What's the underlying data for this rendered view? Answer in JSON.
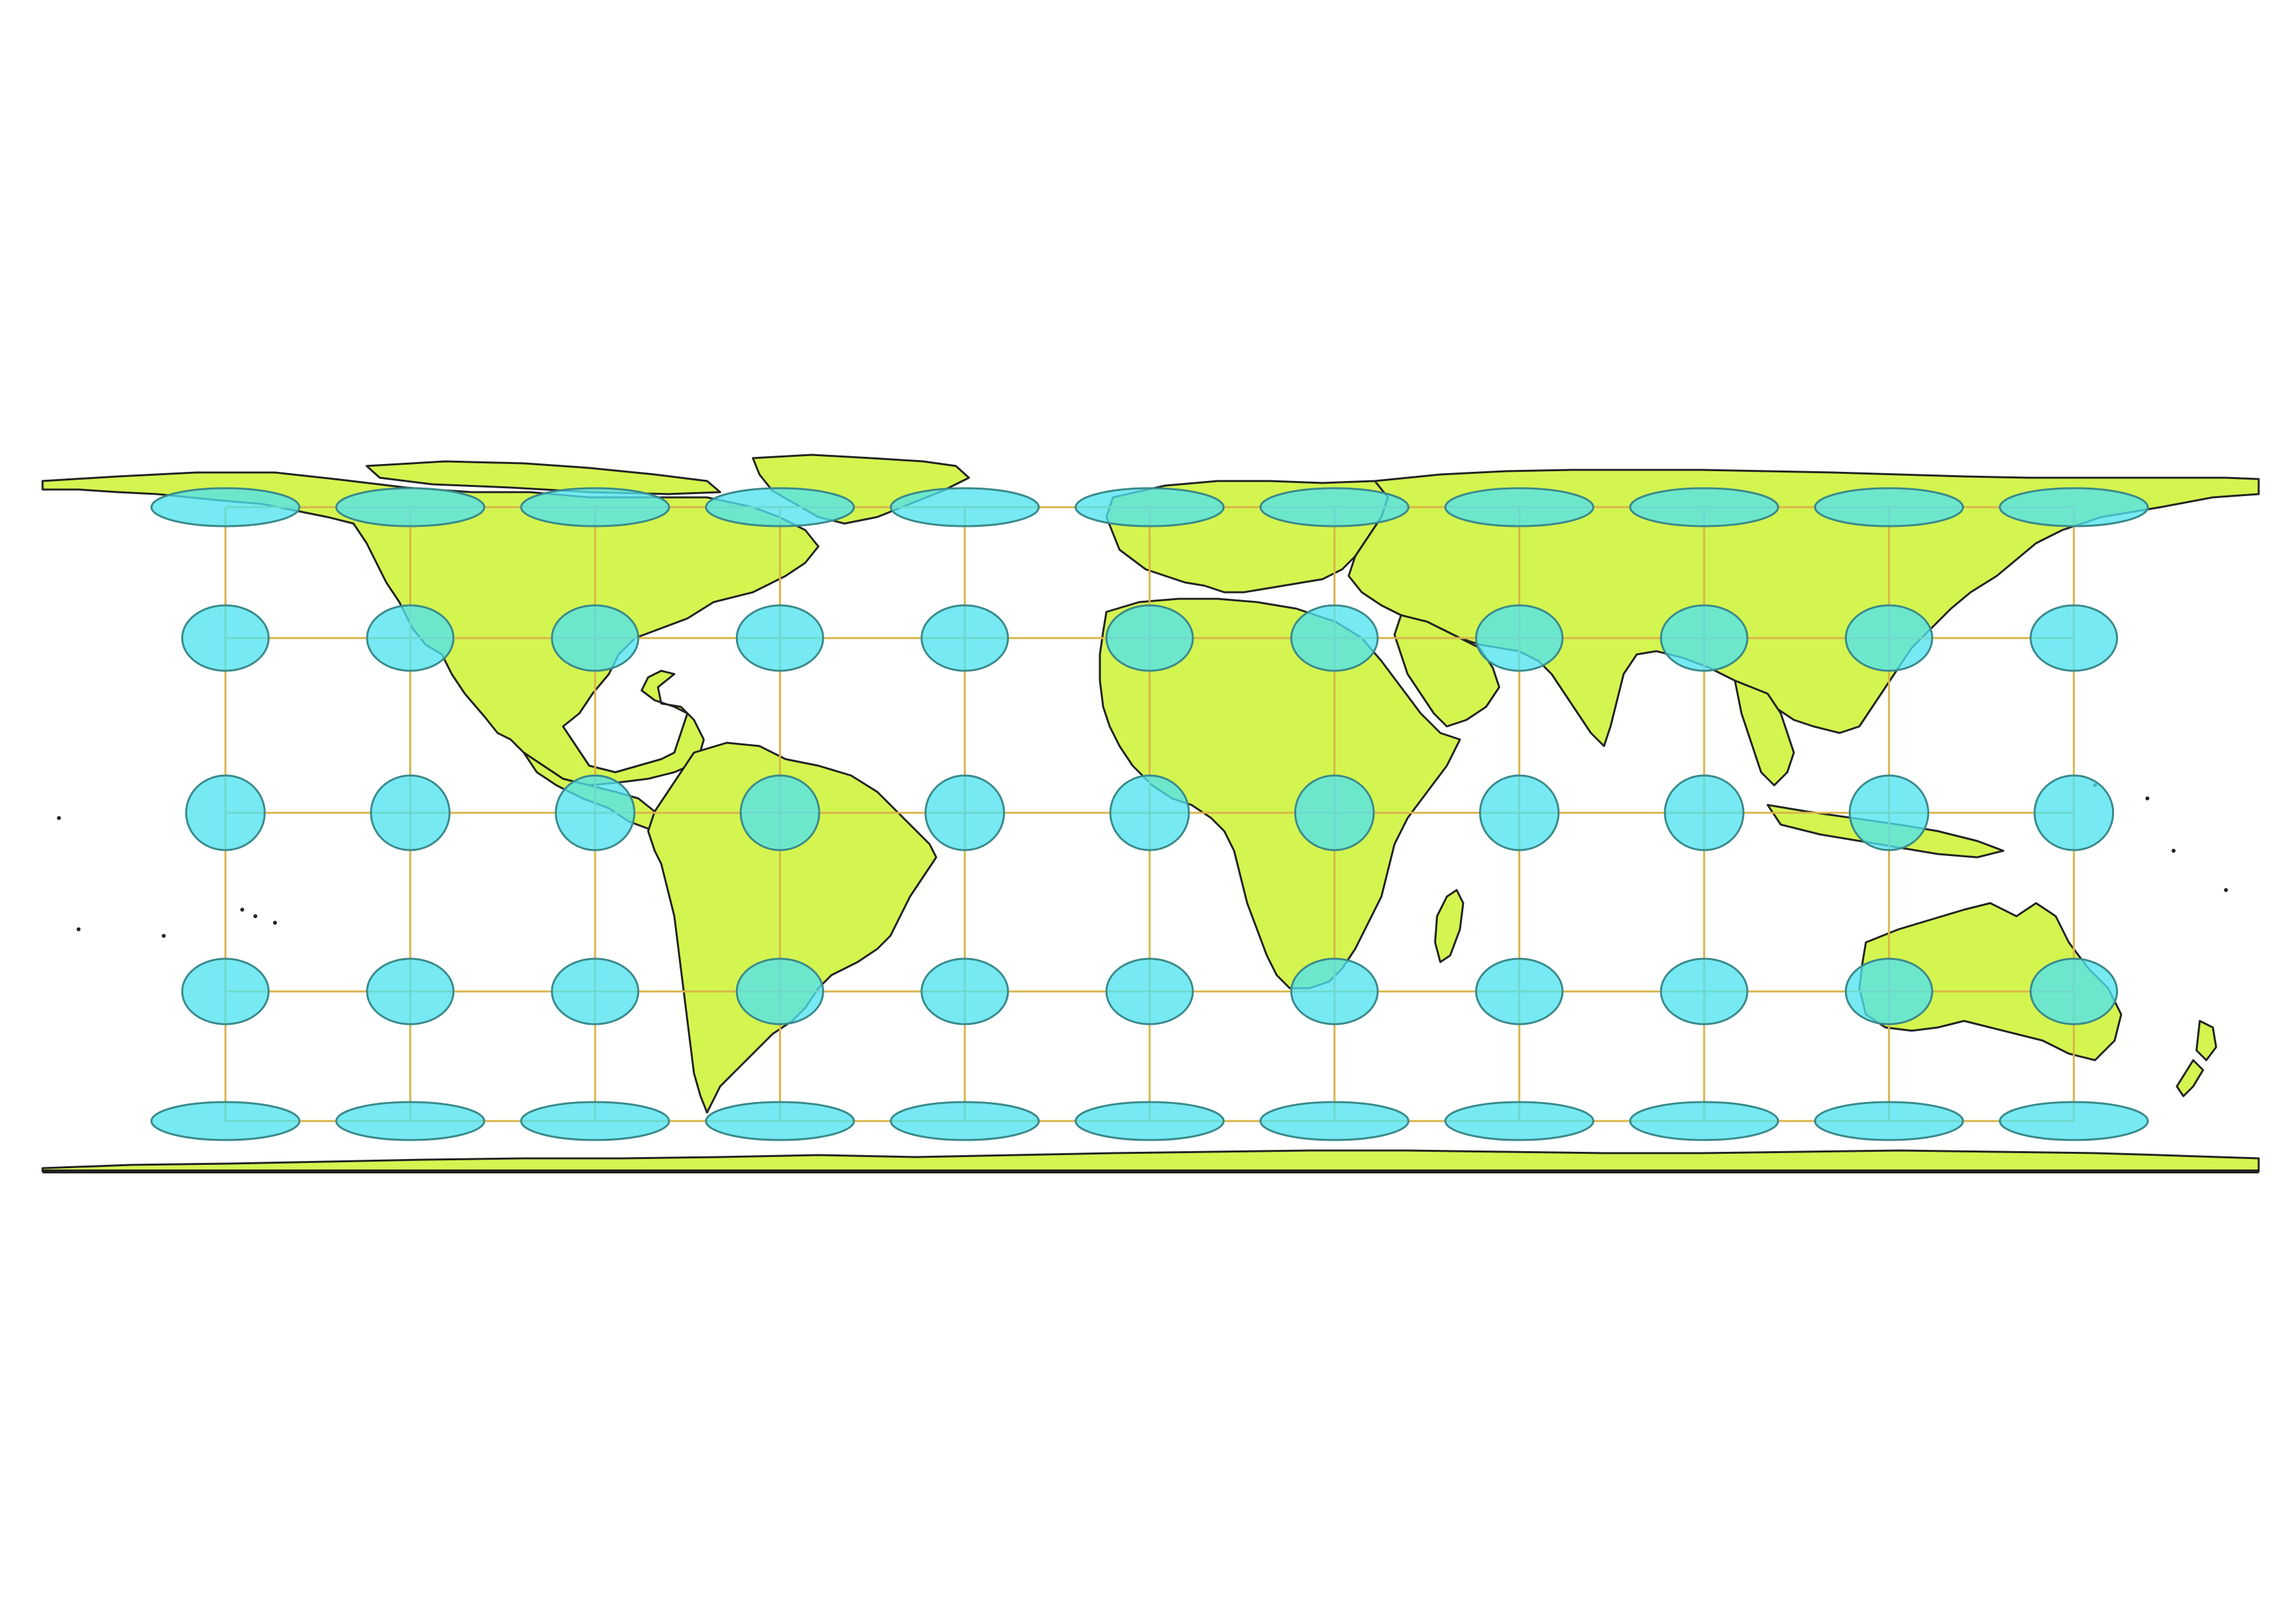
{
  "map": {
    "projection": "equirectangular-compressed",
    "extent": {
      "lon": [
        -180,
        180
      ],
      "lat": [
        -90,
        90
      ]
    },
    "graticule": {
      "meridians": [
        -150,
        -120,
        -90,
        -60,
        -30,
        0,
        30,
        60,
        90,
        120,
        150
      ],
      "parallels": [
        -60,
        -30,
        0,
        30,
        60
      ]
    },
    "tissot_indicatrix": {
      "centers_lon": [
        -150,
        -120,
        -90,
        -60,
        -30,
        0,
        30,
        60,
        90,
        120,
        150
      ],
      "centers_lat": [
        -60,
        -30,
        0,
        30,
        60
      ]
    },
    "colors": {
      "land": "#d4f550",
      "border": "#222222",
      "graticule": "#d9b44a",
      "ellipse": "#4fe3f0",
      "ellipse_stroke": "#3a8a8a",
      "background": "#ffffff"
    }
  }
}
